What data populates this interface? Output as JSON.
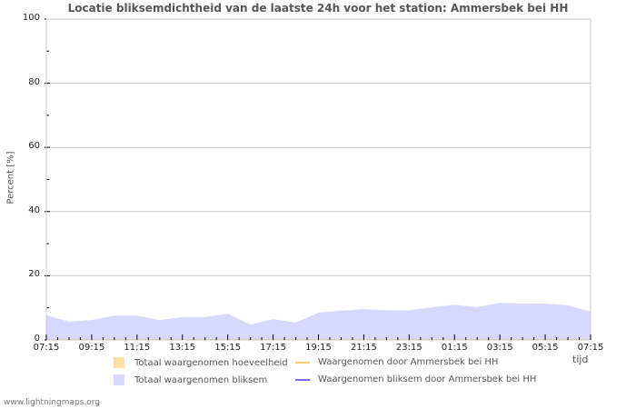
{
  "chart_data": {
    "type": "area",
    "title": "Locatie bliksemdichtheid van de laatste 24h voor het station: Ammersbek bei HH",
    "xlabel": "tijd",
    "ylabel": "Percent   [%]",
    "ylim": [
      0,
      100
    ],
    "yticks": [
      0,
      20,
      40,
      60,
      80,
      100
    ],
    "xticks": [
      "07:15",
      "09:15",
      "11:15",
      "13:15",
      "15:15",
      "17:15",
      "19:15",
      "21:15",
      "23:15",
      "01:15",
      "03:15",
      "05:15",
      "07:15"
    ],
    "grid": true,
    "legend_position": "bottom",
    "x": [
      "07:15",
      "08:15",
      "09:15",
      "10:15",
      "11:15",
      "12:15",
      "13:15",
      "14:15",
      "15:15",
      "16:15",
      "17:15",
      "18:15",
      "19:15",
      "20:15",
      "21:15",
      "22:15",
      "23:15",
      "00:15",
      "01:15",
      "02:15",
      "03:15",
      "04:15",
      "05:15",
      "06:15",
      "07:15"
    ],
    "series": [
      {
        "name": "Totaal waargenomen hoeveelheid",
        "type": "area",
        "color": "#ffe0a0",
        "values": [
          0.3,
          0.3,
          0.3,
          0.3,
          0.3,
          0.3,
          0.3,
          0.3,
          0.3,
          0.3,
          0.3,
          0.3,
          0.3,
          0.3,
          0.3,
          0.3,
          0.3,
          0.3,
          0.3,
          0.3,
          0.3,
          0.3,
          0.3,
          0.3,
          0.3
        ]
      },
      {
        "name": "Totaal waargenomen bliksem",
        "type": "area",
        "color": "#d8d8ff",
        "values": [
          7.7,
          5.7,
          6.2,
          7.6,
          7.6,
          6.2,
          7.1,
          7.1,
          8.2,
          4.8,
          6.5,
          5.4,
          8.5,
          9.1,
          9.6,
          9.3,
          9.3,
          10.2,
          11.0,
          10.2,
          11.6,
          11.3,
          11.3,
          10.8,
          8.8
        ]
      },
      {
        "name": "Waargenomen door Ammersbek bei HH",
        "type": "line",
        "color": "#ffcc66",
        "values": [
          0,
          0,
          0,
          0,
          0,
          0,
          0,
          0,
          0,
          0,
          0,
          0,
          0,
          0,
          0,
          0,
          0,
          0,
          0,
          0,
          0,
          0,
          0,
          0,
          0
        ]
      },
      {
        "name": "Waargenomen bliksem door Ammersbek bei HH",
        "type": "line",
        "color": "#7070e0",
        "values": [
          0,
          0,
          0,
          0,
          0,
          0,
          0,
          0,
          0,
          0,
          0,
          0,
          0,
          0,
          0,
          0,
          0,
          0,
          0,
          0,
          0,
          0,
          0,
          0,
          0
        ]
      }
    ]
  },
  "legend": {
    "items": [
      {
        "label": "Totaal waargenomen hoeveelheid",
        "color": "#ffe0a0"
      },
      {
        "label": "Totaal waargenomen bliksem",
        "color": "#d8d8ff"
      },
      {
        "label": "Waargenomen door Ammersbek bei HH",
        "color": "#ffcc66"
      },
      {
        "label": "Waargenomen bliksem door Ammersbek bei HH",
        "color": "#7070e0"
      }
    ]
  },
  "footer": "www.lightningmaps.org"
}
